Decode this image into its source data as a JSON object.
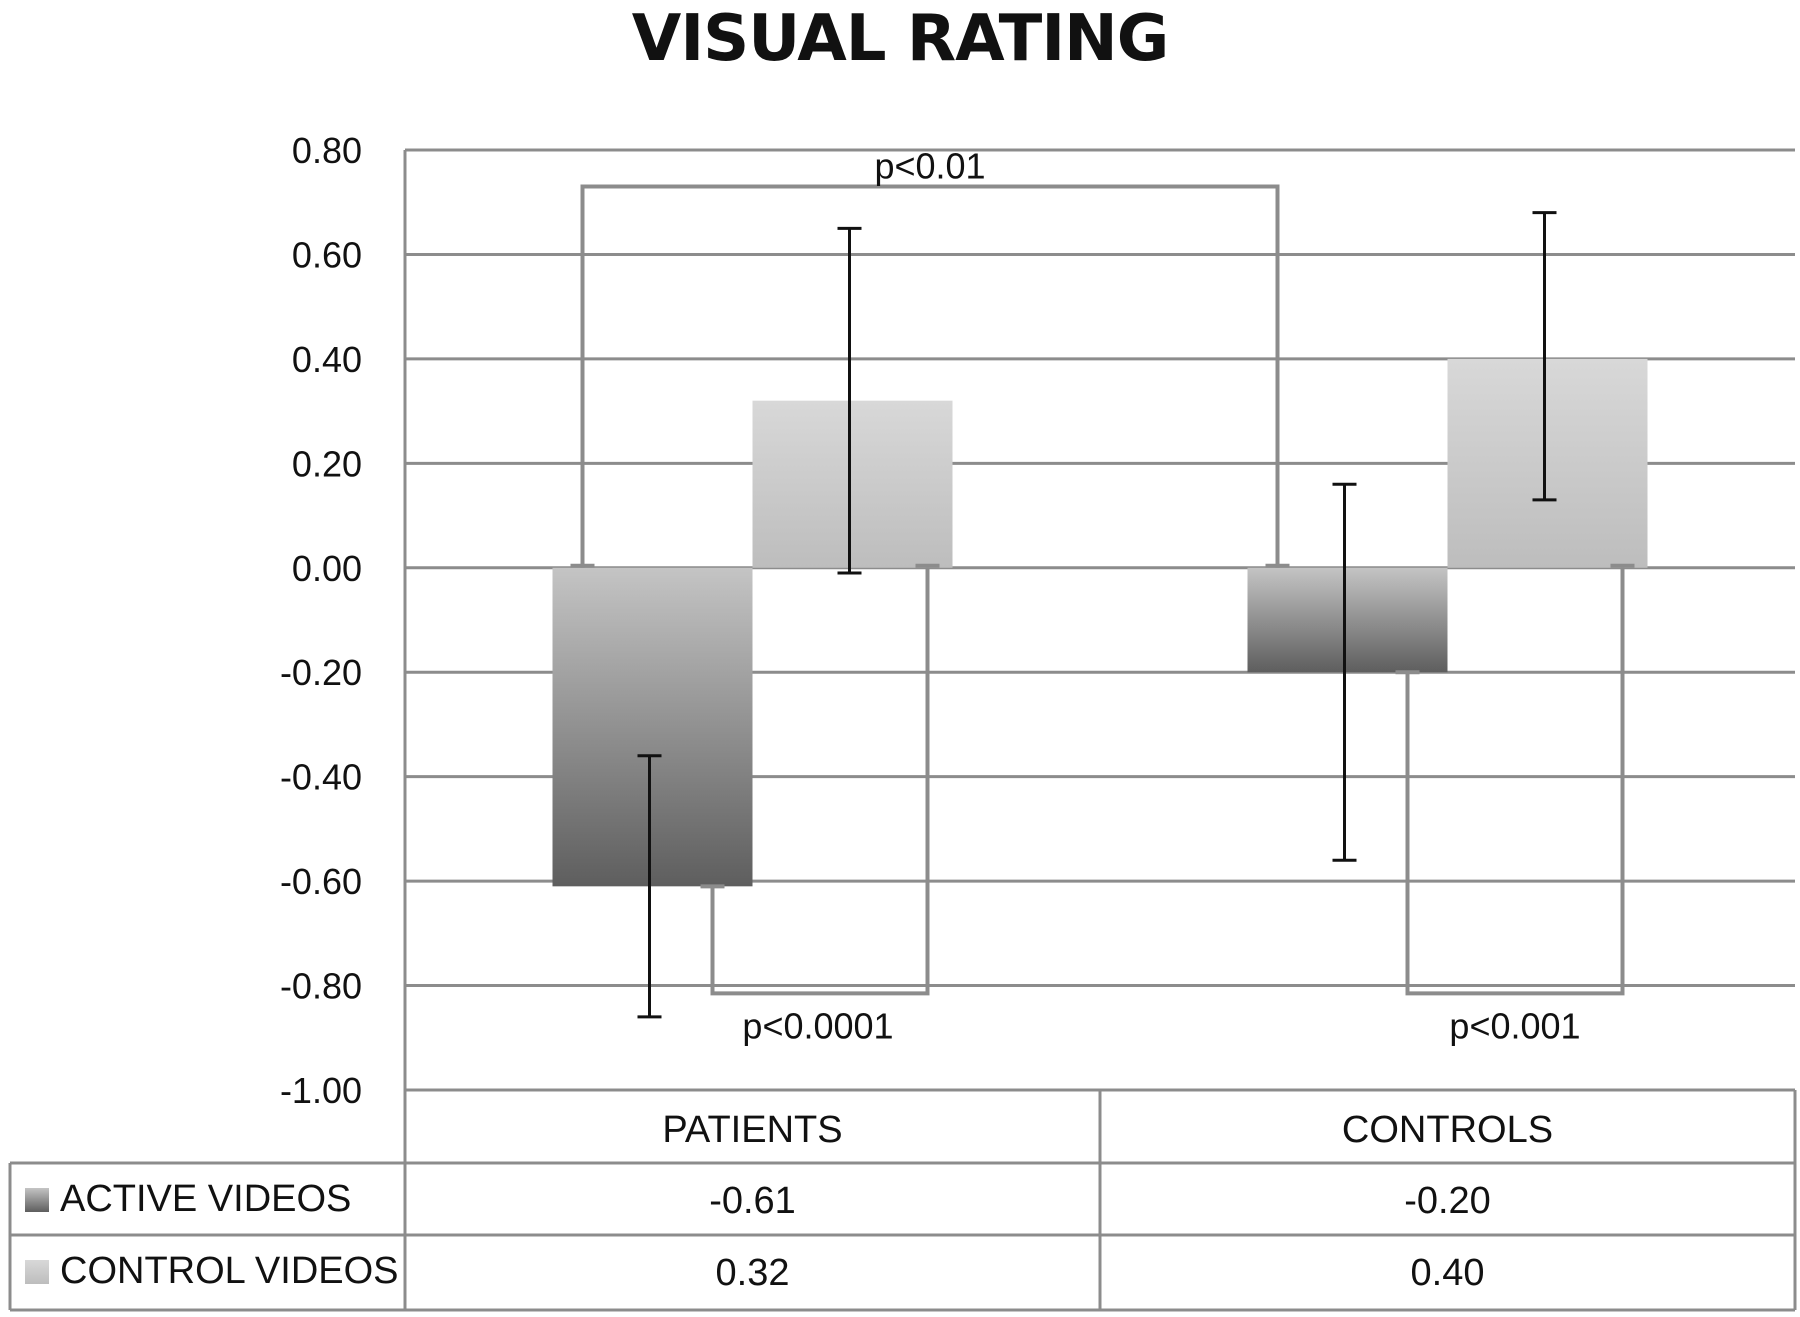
{
  "chart_data": {
    "type": "bar",
    "title": "VISUAL RATING",
    "categories": [
      "PATIENTS",
      "CONTROLS"
    ],
    "series": [
      {
        "name": "ACTIVE VIDEOS",
        "values": [
          -0.61,
          -0.2
        ],
        "error_bars": [
          [
            -0.86,
            -0.36
          ],
          [
            -0.56,
            0.16
          ]
        ],
        "color_top": "#c4c4c4",
        "color_bottom": "#5e5e5e"
      },
      {
        "name": "CONTROL VIDEOS",
        "values": [
          0.32,
          0.4
        ],
        "error_bars": [
          [
            -0.01,
            0.65
          ],
          [
            0.13,
            0.68
          ]
        ],
        "color_top": "#d8d8d8",
        "color_bottom": "#bdbdbd"
      }
    ],
    "ylim": [
      -1.0,
      0.8
    ],
    "yticks": [
      0.8,
      0.6,
      0.4,
      0.2,
      0.0,
      -0.2,
      -0.4,
      -0.6,
      -0.8,
      -1.0
    ],
    "ytick_labels": [
      "0.80",
      "0.60",
      "0.40",
      "0.20",
      "0.00",
      "-0.20",
      "-0.40",
      "-0.60",
      "-0.80",
      "-1.00"
    ],
    "grid": true,
    "annotations": [
      {
        "text": "p<0.01",
        "level": 0.73,
        "connects": "PATIENTS ACTIVE VIDEOS and CONTROLS ACTIVE VIDEOS"
      },
      {
        "text": "p<0.0001",
        "level": -0.815,
        "connects": "PATIENTS ACTIVE VIDEOS and PATIENTS CONTROL VIDEOS"
      },
      {
        "text": "p<0.001",
        "level": -0.815,
        "connects": "CONTROLS ACTIVE VIDEOS and CONTROLS CONTROL VIDEOS"
      }
    ],
    "data_table": {
      "rows": [
        {
          "label": "ACTIVE VIDEOS",
          "values": [
            "-0.61",
            "-0.20"
          ]
        },
        {
          "label": "CONTROL VIDEOS",
          "values": [
            "0.32",
            "0.40"
          ]
        }
      ]
    }
  },
  "colors": {
    "grid": "#8c8c8c",
    "bracket": "#8c8c8c",
    "error_bar": "#111111"
  }
}
